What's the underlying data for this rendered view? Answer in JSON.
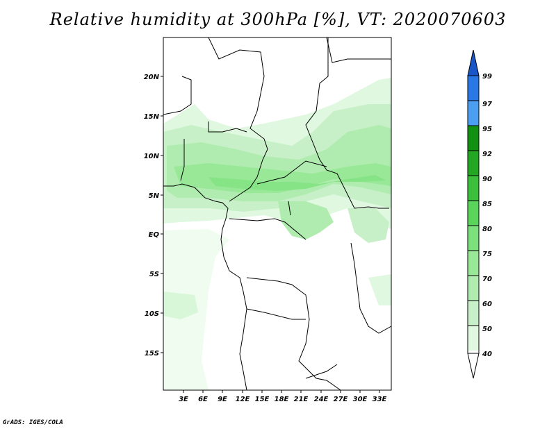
{
  "title": "Relative humidity at 300hPa [%], VT: 2020070603",
  "credit": "GrADS: IGES/COLA",
  "map": {
    "lat_labels": [
      "20N",
      "15N",
      "10N",
      "5N",
      "EQ",
      "5S",
      "10S",
      "15S"
    ],
    "lon_labels": [
      "3E",
      "6E",
      "9E",
      "12E",
      "15E",
      "18E",
      "21E",
      "24E",
      "27E",
      "30E",
      "33E"
    ]
  },
  "colorbar": {
    "levels": [
      "40",
      "50",
      "60",
      "70",
      "75",
      "80",
      "85",
      "90",
      "92",
      "95",
      "97",
      "99"
    ],
    "colors": [
      "#f0fcf0",
      "#e0f8e0",
      "#c8f0c8",
      "#b0ecb0",
      "#98e898",
      "#7ce07c",
      "#5ad45a",
      "#3cc03c",
      "#24a824",
      "#129012",
      "#4c9ef0",
      "#2a78e6",
      "#1a56c8"
    ]
  }
}
